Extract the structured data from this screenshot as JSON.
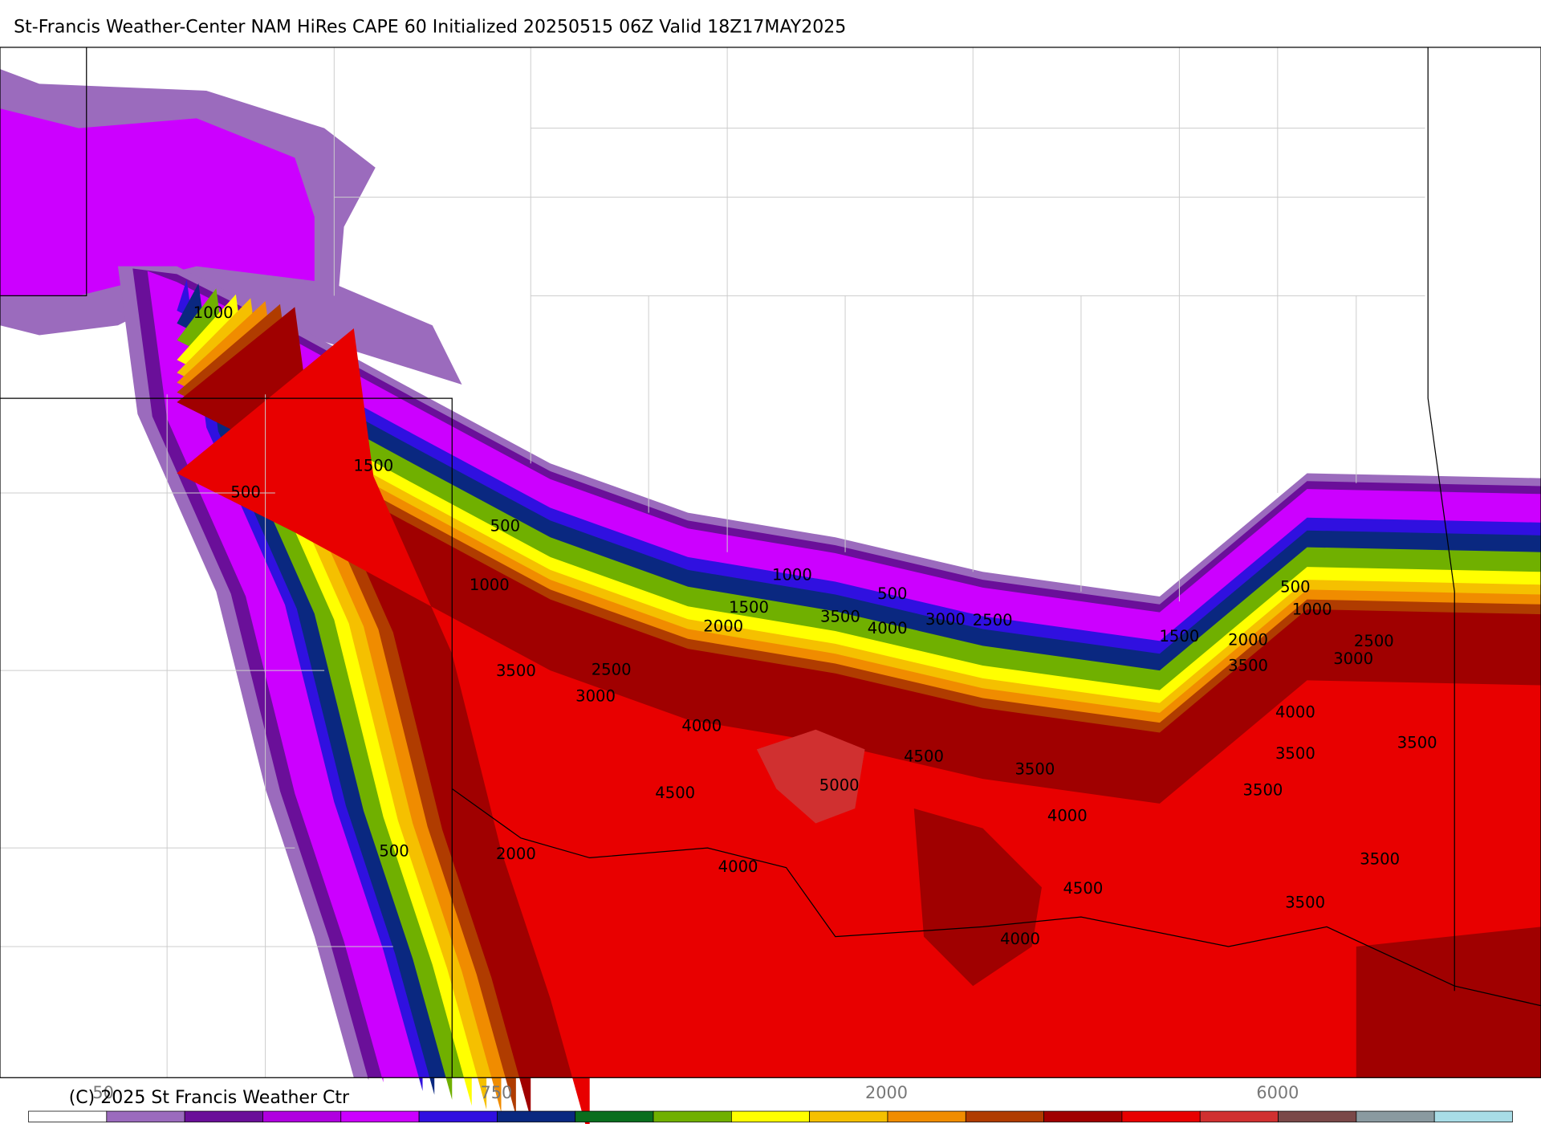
{
  "header": {
    "title": "St-Francis Weather-Center NAM HiRes CAPE  60 Initialized 20250515 06Z Valid 18Z17MAY2025"
  },
  "map": {
    "contour_labels": [
      "1000",
      "1500",
      "500",
      "500",
      "1000",
      "1000",
      "1500",
      "2000",
      "500",
      "3500",
      "4000",
      "3000",
      "2500",
      "3500",
      "2500",
      "3000",
      "4000",
      "4500",
      "5000",
      "4500",
      "3500",
      "4000",
      "500",
      "2000",
      "4000",
      "4500",
      "4000",
      "1500",
      "2000",
      "3500",
      "500",
      "1000",
      "2500",
      "3000",
      "4000",
      "3500",
      "3500",
      "3500",
      "3500",
      "3500"
    ]
  },
  "colorbar": {
    "colors": [
      "#ffffff",
      "#9b6bbd",
      "#6a0f99",
      "#b000e0",
      "#cc00ff",
      "#3010e0",
      "#0a2880",
      "#0a6e1e",
      "#70b000",
      "#ffff00",
      "#f5c000",
      "#f08c00",
      "#b03c00",
      "#a00000",
      "#e80000",
      "#d03030",
      "#7a4848",
      "#8a9aa0",
      "#a8dce6"
    ],
    "labels": [
      "50",
      "750",
      "2000",
      "6000"
    ]
  },
  "footer": {
    "copyright": "(C) 2025 St Francis Weather Ctr"
  }
}
